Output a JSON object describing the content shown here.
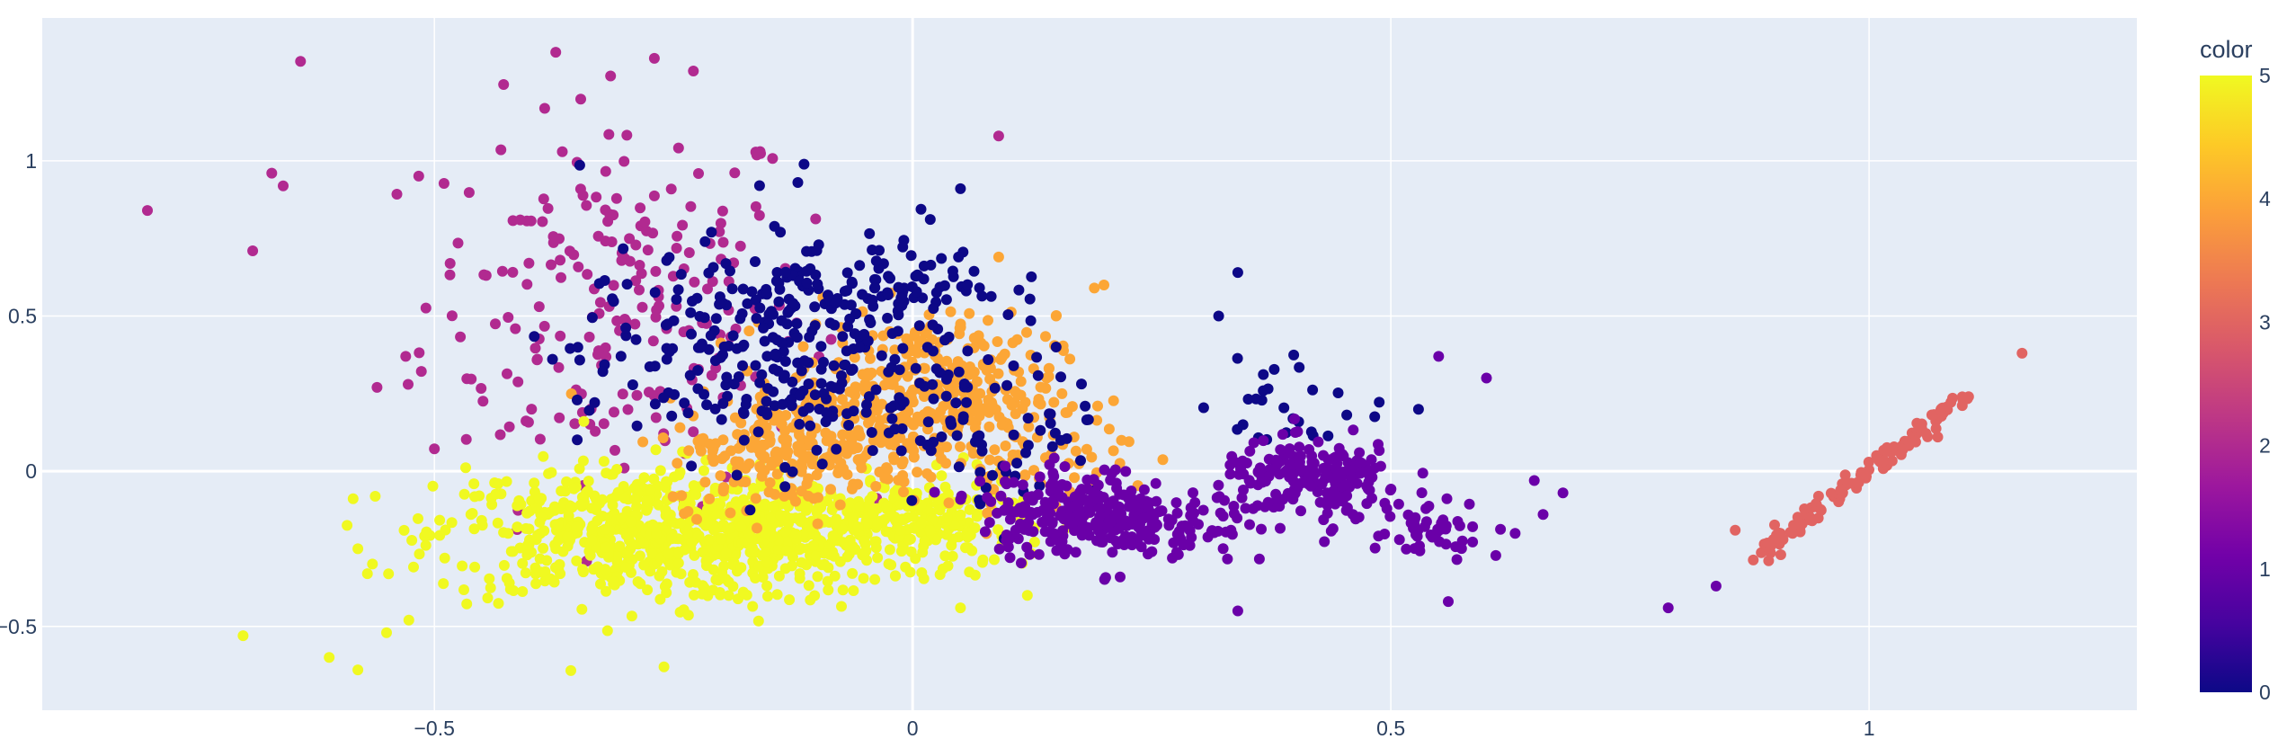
{
  "chart_data": {
    "type": "scatter",
    "xlim": [
      -0.91,
      1.28
    ],
    "ylim": [
      -0.77,
      1.46
    ],
    "x_ticks": [
      -0.5,
      0,
      0.5,
      1
    ],
    "x_tick_labels": [
      "−0.5",
      "0",
      "0.5",
      "1"
    ],
    "y_ticks": [
      -0.5,
      0,
      0.5,
      1
    ],
    "y_tick_labels": [
      "−0.5",
      "0",
      "0.5",
      "1"
    ],
    "grid": true,
    "plot_bgcolor": "#E5ECF6",
    "colorbar": {
      "title": "color",
      "range": [
        0,
        5
      ],
      "ticks": [
        "0",
        "1",
        "2",
        "3",
        "4",
        "5"
      ],
      "colorscale": [
        "#0d0887",
        "#46039f",
        "#7201a8",
        "#9c179e",
        "#bd3786",
        "#d8576b",
        "#ed7953",
        "#fb9f3a",
        "#fdca26",
        "#f0f921"
      ]
    },
    "series": [
      {
        "color_value": 0,
        "color": "#0d0887",
        "clusters": [
          {
            "cx": -0.15,
            "cy": 0.38,
            "sx": 0.1,
            "sy": 0.17,
            "n": 300
          },
          {
            "cx": -0.02,
            "cy": 0.62,
            "sx": 0.06,
            "sy": 0.08,
            "n": 80
          },
          {
            "cx": 0.09,
            "cy": 0.12,
            "sx": 0.06,
            "sy": 0.11,
            "n": 60
          },
          {
            "cx": 0.4,
            "cy": 0.22,
            "sx": 0.05,
            "sy": 0.08,
            "n": 28
          }
        ],
        "points": [
          [
            -0.16,
            0.92
          ],
          [
            -0.12,
            0.93
          ],
          [
            0.05,
            0.91
          ],
          [
            0.34,
            0.64
          ],
          [
            0.32,
            0.5
          ],
          [
            0.15,
            0.4
          ]
        ]
      },
      {
        "color_value": 1,
        "color": "#6a00a8",
        "clusters": [
          {
            "cx": 0.17,
            "cy": -0.13,
            "sx": 0.05,
            "sy": 0.07,
            "n": 230
          },
          {
            "cx": 0.27,
            "cy": -0.2,
            "sx": 0.04,
            "sy": 0.06,
            "n": 70
          },
          {
            "cx": 0.42,
            "cy": -0.03,
            "sx": 0.05,
            "sy": 0.06,
            "n": 200
          },
          {
            "cx": 0.54,
            "cy": -0.17,
            "sx": 0.04,
            "sy": 0.05,
            "n": 50
          }
        ],
        "points": [
          [
            0.65,
            -0.03
          ],
          [
            0.68,
            -0.07
          ],
          [
            0.63,
            -0.2
          ],
          [
            0.56,
            -0.42
          ],
          [
            0.34,
            -0.45
          ],
          [
            0.79,
            -0.44
          ],
          [
            0.84,
            -0.37
          ],
          [
            0.55,
            0.37
          ],
          [
            0.6,
            0.3
          ]
        ]
      },
      {
        "color_value": 2,
        "color": "#b12a90",
        "clusters": [
          {
            "cx": -0.31,
            "cy": 0.55,
            "sx": 0.1,
            "sy": 0.32,
            "n": 220
          }
        ],
        "points": [
          [
            -0.8,
            0.84
          ],
          [
            -0.69,
            0.71
          ],
          [
            -0.67,
            0.96
          ],
          [
            -0.64,
            1.32
          ],
          [
            -0.27,
            1.33
          ],
          [
            0.09,
            1.08
          ],
          [
            -0.53,
            0.37
          ],
          [
            -0.56,
            0.27
          ]
        ]
      },
      {
        "color_value": 3,
        "color": "#e16462",
        "line": {
          "x0": 0.88,
          "y0": -0.28,
          "x1": 1.1,
          "y1": 0.24,
          "n": 120,
          "jitter": 0.008
        },
        "points": [
          [
            1.16,
            0.38
          ],
          [
            0.86,
            -0.19
          ],
          [
            0.9,
            -0.22
          ],
          [
            0.92,
            -0.2
          ]
        ]
      },
      {
        "color_value": 4,
        "color": "#fca636",
        "clusters": [
          {
            "cx": 0.01,
            "cy": 0.26,
            "sx": 0.07,
            "sy": 0.12,
            "n": 360
          },
          {
            "cx": -0.12,
            "cy": 0.06,
            "sx": 0.07,
            "sy": 0.09,
            "n": 220
          },
          {
            "cx": 0.13,
            "cy": 0.04,
            "sx": 0.05,
            "sy": 0.08,
            "n": 60
          }
        ],
        "points": [
          [
            0.2,
            0.6
          ],
          [
            0.19,
            0.59
          ],
          [
            0.15,
            0.5
          ],
          [
            0.09,
            0.69
          ]
        ]
      },
      {
        "color_value": 5,
        "color": "#f0f921",
        "clusters": [
          {
            "cx": -0.3,
            "cy": -0.2,
            "sx": 0.1,
            "sy": 0.11,
            "n": 520
          },
          {
            "cx": -0.12,
            "cy": -0.2,
            "sx": 0.09,
            "sy": 0.09,
            "n": 360
          },
          {
            "cx": 0.01,
            "cy": -0.16,
            "sx": 0.05,
            "sy": 0.07,
            "n": 150
          }
        ],
        "points": [
          [
            -0.7,
            -0.53
          ],
          [
            -0.61,
            -0.6
          ],
          [
            -0.58,
            -0.64
          ],
          [
            -0.26,
            -0.63
          ],
          [
            -0.55,
            -0.52
          ],
          [
            -0.57,
            -0.33
          ],
          [
            -0.58,
            -0.25
          ],
          [
            0.05,
            -0.44
          ],
          [
            0.12,
            -0.4
          ]
        ]
      }
    ]
  }
}
